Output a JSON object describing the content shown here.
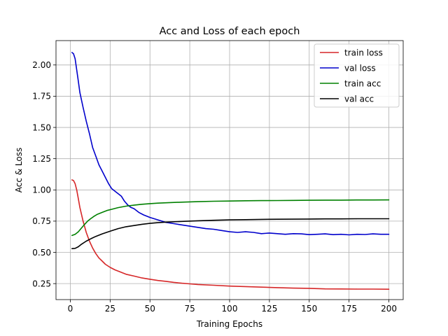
{
  "chart_data": {
    "type": "line",
    "title": "Acc and Loss of each epoch",
    "xlabel": "Training Epochs",
    "ylabel": "Acc & Loss",
    "xlim": [
      -9,
      209
    ],
    "ylim": [
      0.122,
      2.195
    ],
    "xticks": [
      0,
      25,
      50,
      75,
      100,
      125,
      150,
      175,
      200
    ],
    "yticks": [
      0.25,
      0.5,
      0.75,
      1.0,
      1.25,
      1.5,
      1.75,
      2.0
    ],
    "xtick_labels": [
      "0",
      "25",
      "50",
      "75",
      "100",
      "125",
      "150",
      "175",
      "200"
    ],
    "ytick_labels": [
      "0.25",
      "0.50",
      "0.75",
      "1.00",
      "1.25",
      "1.50",
      "1.75",
      "2.00"
    ],
    "grid": true,
    "legend_position": "top-right",
    "series": [
      {
        "name": "train loss",
        "color": "#d62728",
        "x": [
          1,
          2,
          3,
          4,
          5,
          6,
          8,
          10,
          12,
          14,
          16,
          18,
          20,
          22,
          25,
          28,
          30,
          35,
          40,
          45,
          50,
          55,
          60,
          65,
          70,
          75,
          80,
          90,
          100,
          110,
          120,
          130,
          140,
          150,
          160,
          170,
          180,
          190,
          200
        ],
        "values": [
          1.08,
          1.075,
          1.05,
          1.0,
          0.93,
          0.86,
          0.75,
          0.66,
          0.59,
          0.535,
          0.49,
          0.455,
          0.43,
          0.405,
          0.38,
          0.36,
          0.35,
          0.325,
          0.31,
          0.295,
          0.285,
          0.275,
          0.268,
          0.26,
          0.253,
          0.248,
          0.243,
          0.237,
          0.23,
          0.226,
          0.222,
          0.218,
          0.214,
          0.212,
          0.208,
          0.207,
          0.206,
          0.206,
          0.205
        ]
      },
      {
        "name": "val loss",
        "color": "#0000cc",
        "x": [
          1,
          2,
          3,
          4,
          5,
          6,
          7,
          8,
          10,
          12,
          14,
          16,
          18,
          20,
          22,
          24,
          26,
          28,
          30,
          32,
          34,
          36,
          38,
          40,
          43,
          46,
          50,
          55,
          60,
          65,
          70,
          75,
          80,
          85,
          90,
          95,
          100,
          105,
          110,
          115,
          120,
          125,
          130,
          135,
          140,
          145,
          150,
          155,
          160,
          165,
          170,
          175,
          180,
          185,
          190,
          195,
          200
        ],
        "values": [
          2.1,
          2.09,
          2.05,
          1.96,
          1.87,
          1.78,
          1.72,
          1.66,
          1.55,
          1.45,
          1.34,
          1.27,
          1.2,
          1.15,
          1.1,
          1.05,
          1.01,
          0.99,
          0.97,
          0.95,
          0.91,
          0.88,
          0.86,
          0.85,
          0.82,
          0.8,
          0.78,
          0.76,
          0.74,
          0.73,
          0.72,
          0.71,
          0.7,
          0.69,
          0.685,
          0.675,
          0.665,
          0.66,
          0.665,
          0.66,
          0.65,
          0.655,
          0.65,
          0.645,
          0.65,
          0.648,
          0.642,
          0.645,
          0.648,
          0.642,
          0.645,
          0.64,
          0.645,
          0.643,
          0.648,
          0.645,
          0.645
        ]
      },
      {
        "name": "train acc",
        "color": "#008000",
        "x": [
          1,
          3,
          5,
          7,
          9,
          11,
          13,
          15,
          17,
          20,
          23,
          26,
          30,
          35,
          40,
          45,
          50,
          55,
          60,
          70,
          80,
          90,
          100,
          110,
          120,
          130,
          140,
          150,
          160,
          170,
          180,
          190,
          200
        ],
        "values": [
          0.635,
          0.645,
          0.665,
          0.695,
          0.725,
          0.752,
          0.772,
          0.79,
          0.805,
          0.82,
          0.835,
          0.845,
          0.858,
          0.87,
          0.878,
          0.885,
          0.89,
          0.894,
          0.897,
          0.902,
          0.906,
          0.909,
          0.911,
          0.913,
          0.914,
          0.915,
          0.916,
          0.917,
          0.918,
          0.918,
          0.919,
          0.919,
          0.92
        ]
      },
      {
        "name": "val acc",
        "color": "#000000",
        "x": [
          1,
          3,
          5,
          7,
          10,
          13,
          16,
          20,
          25,
          30,
          35,
          40,
          45,
          50,
          55,
          60,
          70,
          80,
          90,
          100,
          110,
          120,
          130,
          140,
          150,
          160,
          170,
          180,
          190,
          200
        ],
        "values": [
          0.53,
          0.532,
          0.545,
          0.565,
          0.59,
          0.61,
          0.628,
          0.648,
          0.67,
          0.69,
          0.705,
          0.715,
          0.725,
          0.732,
          0.738,
          0.742,
          0.748,
          0.753,
          0.757,
          0.76,
          0.762,
          0.764,
          0.765,
          0.766,
          0.767,
          0.768,
          0.768,
          0.769,
          0.769,
          0.769
        ]
      }
    ]
  }
}
